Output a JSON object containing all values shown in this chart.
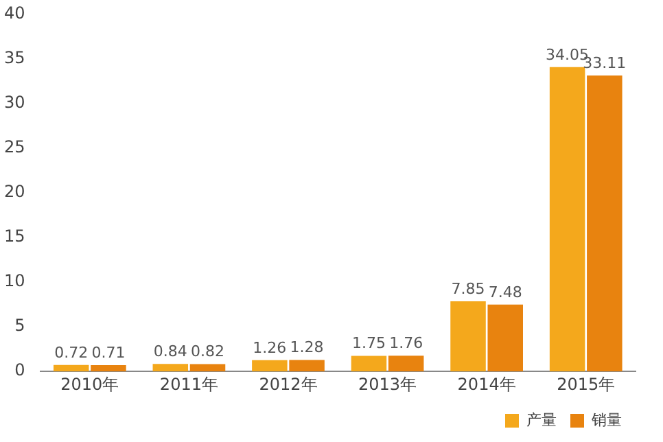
{
  "chart_data": {
    "type": "bar",
    "categories": [
      "2010年",
      "2011年",
      "2012年",
      "2013年",
      "2014年",
      "2015年"
    ],
    "series": [
      {
        "name": "产量",
        "color": "#f4a81c",
        "values": [
          0.72,
          0.84,
          1.26,
          1.75,
          7.85,
          34.05
        ]
      },
      {
        "name": "销量",
        "color": "#e8830f",
        "values": [
          0.71,
          0.82,
          1.28,
          1.76,
          7.48,
          33.11
        ]
      }
    ],
    "ylim": [
      0,
      40
    ],
    "yticks": [
      0,
      5,
      10,
      15,
      20,
      25,
      30,
      35,
      40
    ],
    "grid": false,
    "legend": "bottom right",
    "data_labels": true
  }
}
